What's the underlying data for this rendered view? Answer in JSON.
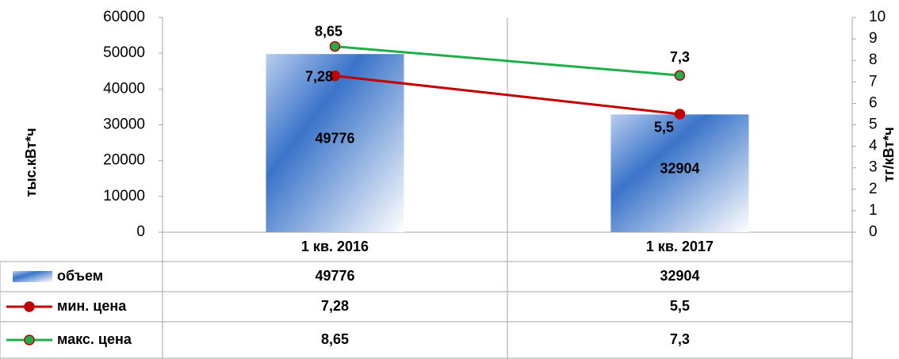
{
  "chart_data": {
    "type": "bar-line",
    "categories": [
      "1 кв. 2016",
      "1 кв. 2017"
    ],
    "ylabel": "тыс.кВт*ч",
    "y2label": "тг/кВт*ч",
    "ylim": [
      0,
      60000
    ],
    "yticks": [
      0,
      10000,
      20000,
      30000,
      40000,
      50000,
      60000
    ],
    "y2lim": [
      0,
      10
    ],
    "y2ticks": [
      0,
      1,
      2,
      3,
      4,
      5,
      6,
      7,
      8,
      9,
      10
    ],
    "series": [
      {
        "name": "объем",
        "type": "bar",
        "color": "#3a74c9",
        "values": [
          49776,
          32904
        ]
      },
      {
        "name": "мин. цена",
        "type": "line",
        "axis": "y2",
        "color": "#c00000",
        "values": [
          7.28,
          5.5
        ],
        "value_labels": [
          "7,28",
          "5,5"
        ]
      },
      {
        "name": "макс. цена",
        "type": "line",
        "axis": "y2",
        "color": "#1fae4b",
        "values": [
          8.65,
          7.3
        ],
        "value_labels": [
          "8,65",
          "7,3"
        ]
      }
    ]
  }
}
